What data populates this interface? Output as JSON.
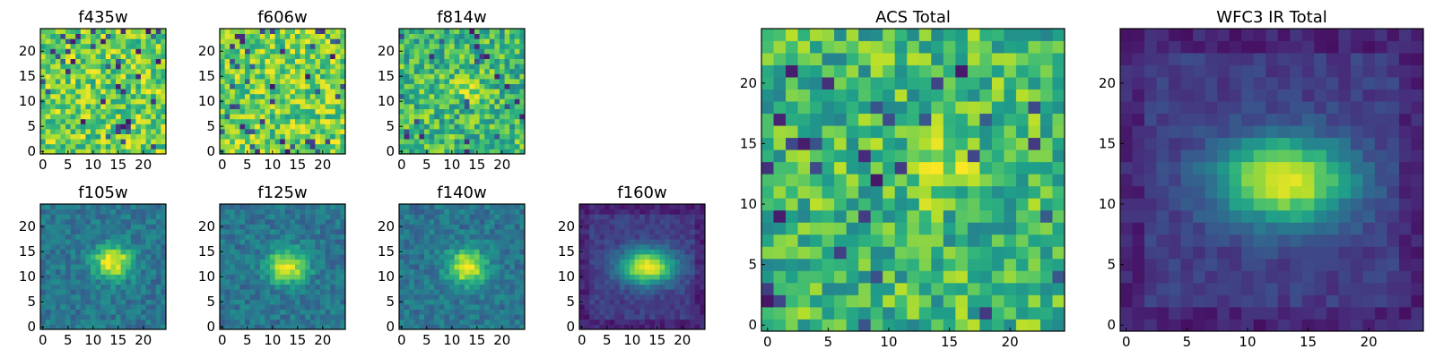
{
  "figure": {
    "colormap": "viridis",
    "colormap_stops": [
      "#440154",
      "#482878",
      "#3e4989",
      "#31688e",
      "#26828e",
      "#1f9e89",
      "#35b779",
      "#6ece58",
      "#b5de2b",
      "#fde725"
    ],
    "frame_color": "#000000",
    "background": "#ffffff"
  },
  "chart_data": [
    {
      "type": "heatmap",
      "title": "f435w",
      "grid_size": [
        25,
        25
      ],
      "x_ticks": [
        0,
        5,
        10,
        15,
        20
      ],
      "y_ticks": [
        0,
        5,
        10,
        15,
        20
      ],
      "xlim": [
        -0.5,
        24.5
      ],
      "ylim": [
        -0.5,
        24.5
      ],
      "pattern": "noise",
      "noise_level": "high",
      "source_center": null
    },
    {
      "type": "heatmap",
      "title": "f606w",
      "grid_size": [
        25,
        25
      ],
      "x_ticks": [
        0,
        5,
        10,
        15,
        20
      ],
      "y_ticks": [
        0,
        5,
        10,
        15,
        20
      ],
      "xlim": [
        -0.5,
        24.5
      ],
      "ylim": [
        -0.5,
        24.5
      ],
      "pattern": "noise",
      "noise_level": "high",
      "source_center": null
    },
    {
      "type": "heatmap",
      "title": "f814w",
      "grid_size": [
        25,
        25
      ],
      "x_ticks": [
        0,
        5,
        10,
        15,
        20
      ],
      "y_ticks": [
        0,
        5,
        10,
        15,
        20
      ],
      "xlim": [
        -0.5,
        24.5
      ],
      "ylim": [
        -0.5,
        24.5
      ],
      "pattern": "faint source",
      "noise_level": "high",
      "source_center": [
        13,
        13
      ]
    },
    {
      "type": "heatmap",
      "title": "f105w",
      "grid_size": [
        25,
        25
      ],
      "x_ticks": [
        0,
        5,
        10,
        15,
        20
      ],
      "y_ticks": [
        0,
        5,
        10,
        15,
        20
      ],
      "xlim": [
        -0.5,
        24.5
      ],
      "ylim": [
        -0.5,
        24.5
      ],
      "pattern": "compact source",
      "noise_level": "medium",
      "source_center": [
        14,
        13
      ]
    },
    {
      "type": "heatmap",
      "title": "f125w",
      "grid_size": [
        25,
        25
      ],
      "x_ticks": [
        0,
        5,
        10,
        15,
        20
      ],
      "y_ticks": [
        0,
        5,
        10,
        15,
        20
      ],
      "xlim": [
        -0.5,
        24.5
      ],
      "ylim": [
        -0.5,
        24.5
      ],
      "pattern": "compact source",
      "noise_level": "medium",
      "source_center": [
        13,
        12
      ]
    },
    {
      "type": "heatmap",
      "title": "f140w",
      "grid_size": [
        25,
        25
      ],
      "x_ticks": [
        0,
        5,
        10,
        15,
        20
      ],
      "y_ticks": [
        0,
        5,
        10,
        15,
        20
      ],
      "xlim": [
        -0.5,
        24.5
      ],
      "ylim": [
        -0.5,
        24.5
      ],
      "pattern": "compact source",
      "noise_level": "medium",
      "source_center": [
        13,
        12
      ]
    },
    {
      "type": "heatmap",
      "title": "f160w",
      "grid_size": [
        25,
        25
      ],
      "x_ticks": [
        0,
        5,
        10,
        15,
        20
      ],
      "y_ticks": [
        0,
        5,
        10,
        15,
        20
      ],
      "xlim": [
        -0.5,
        24.5
      ],
      "ylim": [
        -0.5,
        24.5
      ],
      "pattern": "elongated source",
      "noise_level": "low",
      "source_center": [
        13,
        12
      ]
    },
    {
      "type": "heatmap",
      "title": "ACS Total",
      "grid_size": [
        25,
        25
      ],
      "x_ticks": [
        0,
        5,
        10,
        15,
        20
      ],
      "y_ticks": [
        0,
        5,
        10,
        15,
        20
      ],
      "xlim": [
        -0.5,
        24.5
      ],
      "ylim": [
        -0.5,
        24.5
      ],
      "pattern": "faint source",
      "noise_level": "high",
      "source_center": [
        14,
        13
      ]
    },
    {
      "type": "heatmap",
      "title": "WFC3 IR Total",
      "grid_size": [
        25,
        25
      ],
      "x_ticks": [
        0,
        5,
        10,
        15,
        20
      ],
      "y_ticks": [
        0,
        5,
        10,
        15,
        20
      ],
      "xlim": [
        -0.5,
        24.5
      ],
      "ylim": [
        -0.5,
        24.5
      ],
      "pattern": "elongated source",
      "noise_level": "low",
      "source_center": [
        13,
        12
      ]
    }
  ]
}
